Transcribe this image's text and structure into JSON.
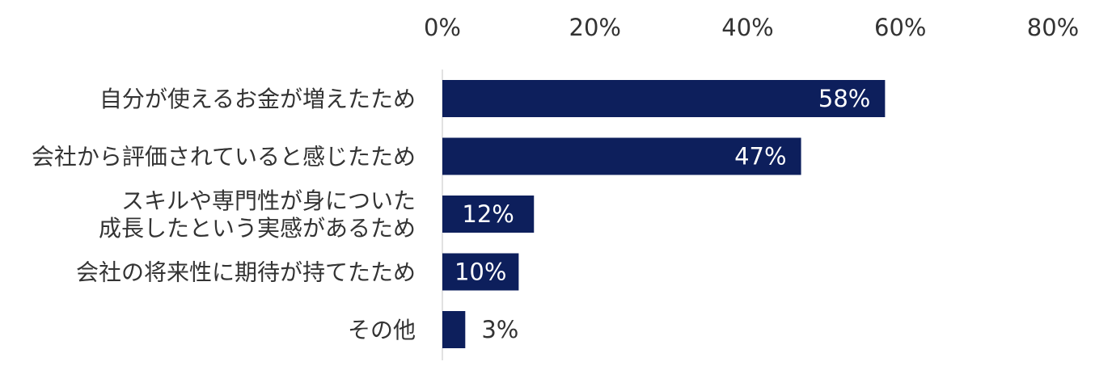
{
  "chart_data": {
    "type": "bar",
    "orientation": "horizontal",
    "categories": [
      [
        "自分が使えるお金が増えたため"
      ],
      [
        "会社から評価されていると感じたため"
      ],
      [
        "スキルや専門性が身についた",
        "成長したという実感があるため"
      ],
      [
        "会社の将来性に期待が持てたため"
      ],
      [
        "その他"
      ]
    ],
    "values": [
      58,
      47,
      12,
      10,
      3
    ],
    "data_labels": [
      "58%",
      "47%",
      "12%",
      "10%",
      "3%"
    ],
    "xlim": [
      0,
      80
    ],
    "x_ticks": [
      0,
      20,
      40,
      60,
      80
    ],
    "x_tick_labels": [
      "0%",
      "20%",
      "40%",
      "60%",
      "80%"
    ],
    "axis_position": "top",
    "grid": false,
    "bar_color": "#0d1f5c",
    "label_color_inside": "#ffffff",
    "label_color_outside": "#333333",
    "axis_line_color": "#d9d9d9"
  }
}
